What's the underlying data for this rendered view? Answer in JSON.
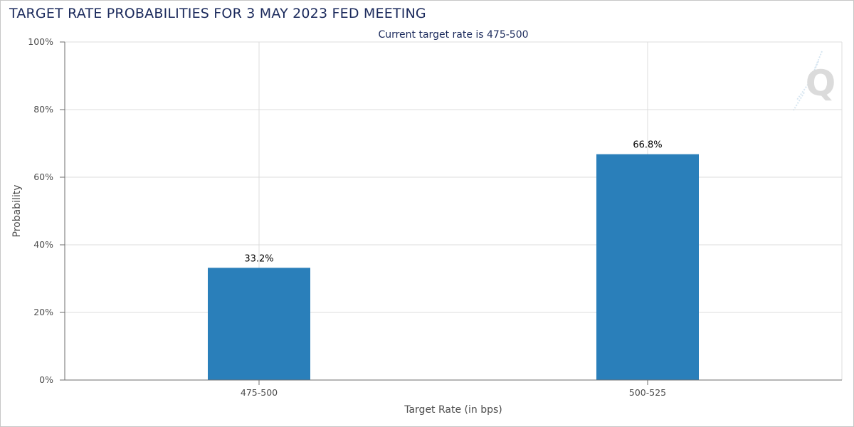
{
  "chart_data": {
    "type": "bar",
    "title": "TARGET RATE PROBABILITIES FOR 3 MAY 2023 FED MEETING",
    "subtitle": "Current target rate is 475-500",
    "xlabel": "Target Rate (in bps)",
    "ylabel": "Probability",
    "categories": [
      "475-500",
      "500-525"
    ],
    "values": [
      33.2,
      66.8
    ],
    "data_labels": [
      "33.2%",
      "66.8%"
    ],
    "ylim": [
      0,
      100
    ],
    "y_ticks": [
      0,
      20,
      40,
      60,
      80,
      100
    ],
    "y_tick_labels": [
      "0%",
      "20%",
      "40%",
      "60%",
      "80%",
      "100%"
    ],
    "grid": true,
    "legend": "none",
    "colors": {
      "bar": "#2a7fba",
      "grid": "#dcdcdc",
      "axis": "#6e6e6e",
      "title": "#1b2a5c"
    }
  }
}
